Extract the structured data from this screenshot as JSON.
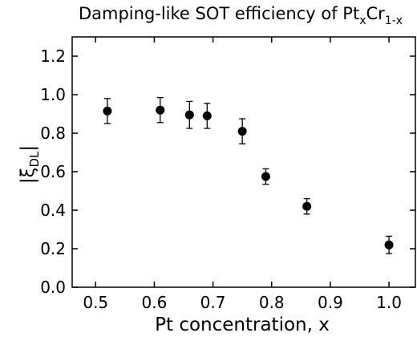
{
  "chart_data": {
    "type": "scatter",
    "title_parts": [
      "Damping-like SOT efficiency of Pt",
      "x",
      "Cr",
      "1-x"
    ],
    "x_label": "Pt concentration, x",
    "y_label_parts": [
      "|ξ",
      "DL",
      "|"
    ],
    "x": [
      0.52,
      0.61,
      0.66,
      0.69,
      0.75,
      0.79,
      0.86,
      1.0
    ],
    "values": [
      0.915,
      0.92,
      0.895,
      0.89,
      0.81,
      0.575,
      0.42,
      0.22
    ],
    "errors": [
      0.065,
      0.065,
      0.07,
      0.065,
      0.065,
      0.04,
      0.04,
      0.045
    ],
    "color": "#000000",
    "xlim": [
      0.46,
      1.045
    ],
    "ylim": [
      0,
      1.3
    ],
    "xticks": [
      0.5,
      0.6,
      0.7,
      0.8,
      0.9,
      {
        "value": 1.0,
        "label": "1.0"
      }
    ],
    "yticks": [
      {
        "value": 0,
        "label": "0.0"
      },
      0.2,
      0.4,
      0.6,
      0.8,
      {
        "value": 1.0,
        "label": "1.0"
      },
      1.2
    ]
  }
}
